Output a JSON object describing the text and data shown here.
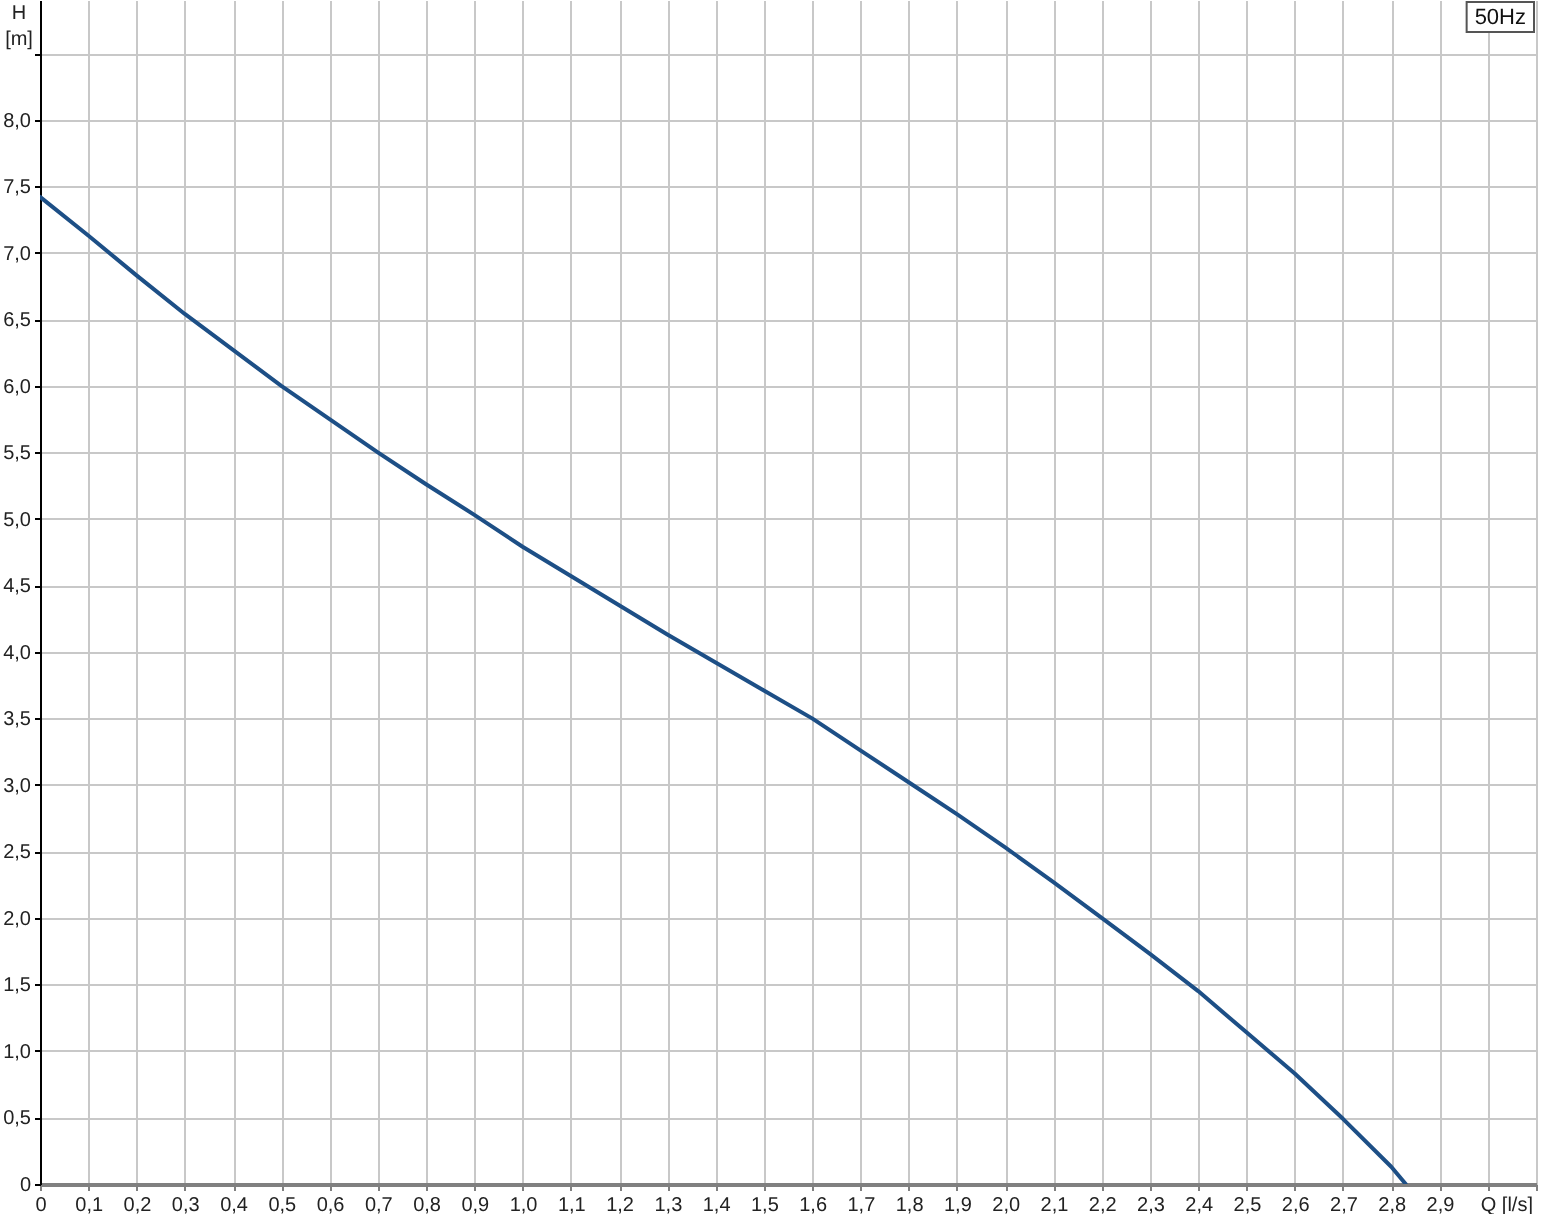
{
  "chart_data": {
    "type": "line",
    "xlabel": "Q [l/s]",
    "ylabel": "H [m]",
    "annotations": [
      "50Hz"
    ],
    "x": [
      0,
      0.1,
      0.2,
      0.3,
      0.4,
      0.5,
      0.6,
      0.7,
      0.8,
      0.9,
      1.0,
      1.1,
      1.2,
      1.3,
      1.4,
      1.5,
      1.6,
      1.7,
      1.8,
      1.9,
      2.0,
      2.1,
      2.2,
      2.3,
      2.4,
      2.5,
      2.6,
      2.7,
      2.8,
      2.83
    ],
    "values": [
      7.42,
      7.13,
      6.83,
      6.54,
      6.27,
      6.0,
      5.75,
      5.5,
      5.26,
      5.03,
      4.79,
      4.57,
      4.35,
      4.13,
      3.92,
      3.71,
      3.5,
      3.26,
      3.02,
      2.78,
      2.53,
      2.27,
      2.0,
      1.73,
      1.45,
      1.14,
      0.83,
      0.49,
      0.13,
      0
    ],
    "color": "#1d4f86",
    "xlim": [
      0,
      3.1
    ],
    "xticks": [
      0,
      {
        "value": 0.1,
        "label": "0,1"
      },
      {
        "value": 0.2,
        "label": "0,2"
      },
      {
        "value": 0.3,
        "label": "0,3"
      },
      {
        "value": 0.4,
        "label": "0,4"
      },
      {
        "value": 0.5,
        "label": "0,5"
      },
      {
        "value": 0.6,
        "label": "0,6"
      },
      {
        "value": 0.7,
        "label": "0,7"
      },
      {
        "value": 0.8,
        "label": "0,8"
      },
      {
        "value": 0.9,
        "label": "0,9"
      },
      {
        "value": 1.0,
        "label": "1,0"
      },
      {
        "value": 1.1,
        "label": "1,1"
      },
      {
        "value": 1.2,
        "label": "1,2"
      },
      {
        "value": 1.3,
        "label": "1,3"
      },
      {
        "value": 1.4,
        "label": "1,4"
      },
      {
        "value": 1.5,
        "label": "1,5"
      },
      {
        "value": 1.6,
        "label": "1,6"
      },
      {
        "value": 1.7,
        "label": "1,7"
      },
      {
        "value": 1.8,
        "label": "1,8"
      },
      {
        "value": 1.9,
        "label": "1,9"
      },
      {
        "value": 2.0,
        "label": "2,0"
      },
      {
        "value": 2.1,
        "label": "2,1"
      },
      {
        "value": 2.2,
        "label": "2,2"
      },
      {
        "value": 2.3,
        "label": "2,3"
      },
      {
        "value": 2.4,
        "label": "2,4"
      },
      {
        "value": 2.5,
        "label": "2,5"
      },
      {
        "value": 2.6,
        "label": "2,6"
      },
      {
        "value": 2.7,
        "label": "2,7"
      },
      {
        "value": 2.8,
        "label": "2,8"
      },
      {
        "value": 2.9,
        "label": "2,9"
      },
      {
        "value": 3.0,
        "label": null
      },
      {
        "value": 3.1,
        "label": null
      }
    ],
    "ylim": [
      0,
      8.9
    ],
    "yticks": [
      0,
      {
        "value": 0.5,
        "label": "0,5"
      },
      {
        "value": 1.0,
        "label": "1,0"
      },
      {
        "value": 1.5,
        "label": "1,5"
      },
      {
        "value": 2.0,
        "label": "2,0"
      },
      {
        "value": 2.5,
        "label": "2,5"
      },
      {
        "value": 3.0,
        "label": "3,0"
      },
      {
        "value": 3.5,
        "label": "3,5"
      },
      {
        "value": 4.0,
        "label": "4,0"
      },
      {
        "value": 4.5,
        "label": "4,5"
      },
      {
        "value": 5.0,
        "label": "5,0"
      },
      {
        "value": 5.5,
        "label": "5,5"
      },
      {
        "value": 6.0,
        "label": "6,0"
      },
      {
        "value": 6.5,
        "label": "6,5"
      },
      {
        "value": 7.0,
        "label": "7,0"
      },
      {
        "value": 7.5,
        "label": "7,5"
      },
      {
        "value": 8.0,
        "label": "8,0"
      },
      {
        "value": 8.5,
        "label": null
      }
    ],
    "grid": true
  }
}
